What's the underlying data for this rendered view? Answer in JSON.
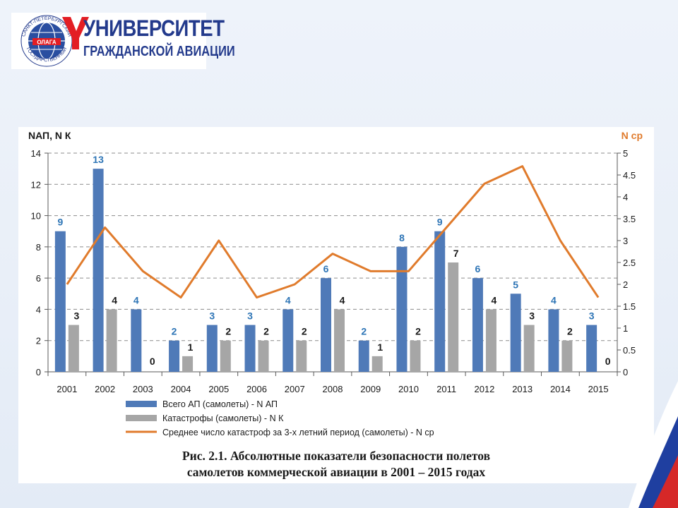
{
  "logo": {
    "title": "УНИВЕРСИТЕТ",
    "subtitle": "ГРАЖДАНСКОЙ АВИАЦИИ",
    "badge": "ОЛАГА",
    "ring_top": "САНКТ-ПЕТЕРБУРГСКИЙ",
    "ring_bottom": "ГОСУДАРСТВЕННЫЙ",
    "colors": {
      "blue": "#233a8c",
      "red": "#e31e24"
    }
  },
  "caption": {
    "line1": "Рис. 2.1. Абсолютные показатели безопасности полетов",
    "line2": "самолетов коммерческой авиации в 2001 – 2015 годах"
  },
  "chart_data": {
    "type": "bar",
    "categories": [
      "2001",
      "2002",
      "2003",
      "2004",
      "2005",
      "2006",
      "2007",
      "2008",
      "2009",
      "2010",
      "2011",
      "2012",
      "2013",
      "2014",
      "2015"
    ],
    "ylabel_left": "NАП, N К",
    "ylabel_right": "N ср",
    "ylim_left": [
      0,
      14
    ],
    "yticks_left": [
      "0",
      "2",
      "4",
      "6",
      "8",
      "10",
      "12",
      "14"
    ],
    "ylim_right": [
      0,
      5
    ],
    "yticks_right": [
      "0",
      "0.5",
      "1",
      "1.5",
      "2",
      "2.5",
      "3",
      "3.5",
      "4",
      "4.5",
      "5"
    ],
    "grid": true,
    "legend_position": "bottom",
    "series": [
      {
        "name": "Всего АП (самолеты) - N АП",
        "kind": "bar",
        "color": "#4f7ab8",
        "label_color": "#2e75b6",
        "values": [
          9,
          13,
          4,
          2,
          3,
          3,
          4,
          6,
          2,
          8,
          9,
          6,
          5,
          4,
          3
        ],
        "labels": [
          "9",
          "13",
          "4",
          "2",
          "3",
          "3",
          "4",
          "6",
          "2",
          "8",
          "9",
          "6",
          "5",
          "4",
          "3"
        ]
      },
      {
        "name": "Катастрофы (самолеты) - N К",
        "kind": "bar",
        "color": "#a6a6a6",
        "label_color": "#1a1a1a",
        "values": [
          3,
          4,
          0,
          1,
          2,
          2,
          2,
          4,
          1,
          2,
          7,
          4,
          3,
          2,
          0
        ],
        "labels": [
          "3",
          "4",
          "0",
          "1",
          "2",
          "2",
          "2",
          "4",
          "1",
          "2",
          "7",
          "4",
          "3",
          "2",
          "0"
        ]
      },
      {
        "name": "Среднее число катастроф за 3-х летний период (самолеты) - N ср",
        "kind": "line",
        "axis": "right",
        "color": "#e07b2c",
        "values": [
          2.0,
          3.3,
          2.3,
          1.7,
          3.0,
          1.7,
          2.0,
          2.7,
          2.3,
          2.3,
          3.3,
          4.3,
          4.7,
          3.0,
          1.7
        ]
      }
    ]
  }
}
